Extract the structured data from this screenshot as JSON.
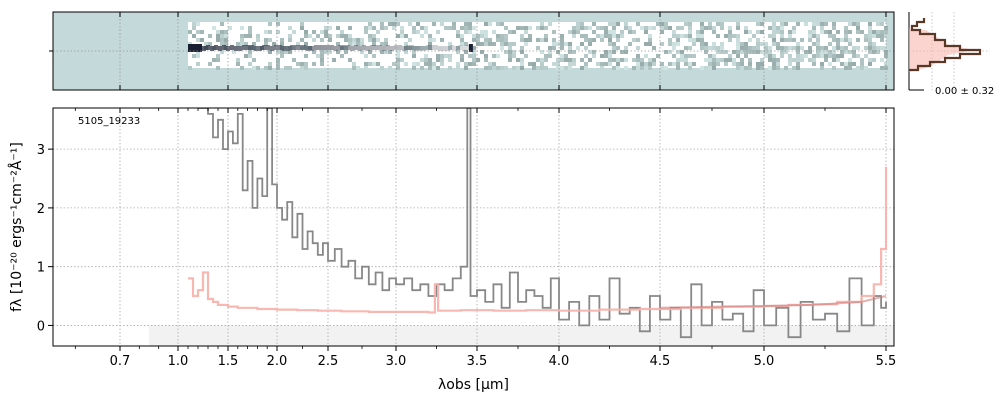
{
  "chart_data": [
    {
      "type": "heatmap",
      "panel": "2D spectrum",
      "colormap": [
        "#c4d9d9",
        "#ffffff",
        "#1a2033"
      ],
      "grid": true,
      "xlim": [
        0.55,
        5.52
      ],
      "x_scale": "nonlinear",
      "data_x_range": [
        1.1,
        5.5
      ],
      "trace_note_x": [
        1.1,
        3.45
      ]
    },
    {
      "type": "line",
      "panel": "pixel histogram",
      "label": "0.00 ± 0.32",
      "series": [
        {
          "name": "histogram",
          "color": "#5a3828"
        },
        {
          "name": "reference",
          "color": "#f7b0a8"
        }
      ]
    },
    {
      "type": "line",
      "panel": "1D spectrum",
      "title": "5105_19233",
      "xlabel": "λobs [μm]",
      "ylabel": "fλ [10⁻²⁰ ergs⁻¹cm⁻²Å⁻¹]",
      "xlim": [
        0.55,
        5.52
      ],
      "ylim": [
        -0.35,
        3.7
      ],
      "x_scale": "nonlinear",
      "x_ticks": [
        0.7,
        1.0,
        1.5,
        2.0,
        2.5,
        3.0,
        3.5,
        4.0,
        4.5,
        5.0,
        5.5
      ],
      "x_tick_labels": [
        "0.7",
        "1.0",
        "1.5",
        "2.0",
        "2.5",
        "3.0",
        "3.5",
        "4.0",
        "4.5",
        "5.0",
        "5.5"
      ],
      "y_ticks": [
        0,
        1,
        2,
        3
      ],
      "y_tick_labels": [
        "0",
        "1",
        "2",
        "3"
      ],
      "grid": true,
      "series": [
        {
          "name": "flux",
          "color": "#888888",
          "style": "step",
          "x": [
            1.2,
            1.25,
            1.3,
            1.35,
            1.4,
            1.45,
            1.5,
            1.55,
            1.6,
            1.65,
            1.7,
            1.75,
            1.8,
            1.85,
            1.9,
            1.95,
            2.0,
            2.05,
            2.1,
            2.15,
            2.2,
            2.25,
            2.3,
            2.35,
            2.4,
            2.45,
            2.5,
            2.55,
            2.6,
            2.65,
            2.7,
            2.75,
            2.8,
            2.85,
            2.9,
            2.95,
            3.0,
            3.05,
            3.1,
            3.15,
            3.2,
            3.25,
            3.3,
            3.35,
            3.4,
            3.44,
            3.46,
            3.5,
            3.55,
            3.6,
            3.65,
            3.7,
            3.75,
            3.8,
            3.85,
            3.9,
            3.95,
            4.0,
            4.05,
            4.1,
            4.15,
            4.2,
            4.25,
            4.3,
            4.35,
            4.4,
            4.45,
            4.5,
            4.55,
            4.6,
            4.65,
            4.7,
            4.75,
            4.8,
            4.85,
            4.9,
            4.95,
            5.0,
            5.05,
            5.1,
            5.15,
            5.2,
            5.25,
            5.3,
            5.35,
            5.4,
            5.45,
            5.48,
            5.5
          ],
          "values": [
            3.7,
            3.7,
            3.6,
            3.2,
            3.5,
            3.0,
            3.3,
            3.1,
            3.6,
            2.3,
            2.8,
            2.0,
            2.5,
            2.2,
            3.7,
            2.4,
            2.0,
            1.8,
            2.1,
            1.5,
            1.9,
            1.3,
            1.6,
            1.4,
            1.2,
            1.4,
            1.1,
            1.3,
            1.0,
            1.1,
            0.8,
            1.0,
            0.7,
            0.9,
            0.6,
            0.8,
            0.7,
            0.8,
            0.6,
            0.7,
            0.5,
            0.7,
            0.6,
            0.8,
            1.0,
            3.7,
            0.5,
            0.6,
            0.4,
            0.7,
            0.3,
            0.9,
            0.4,
            0.6,
            0.5,
            0.3,
            0.8,
            0.1,
            0.4,
            0.0,
            0.5,
            0.1,
            0.8,
            0.2,
            0.3,
            -0.1,
            0.5,
            0.1,
            0.3,
            -0.2,
            0.7,
            0.0,
            0.4,
            0.1,
            0.2,
            -0.1,
            0.6,
            0.0,
            0.3,
            -0.2,
            0.4,
            0.1,
            0.2,
            -0.1,
            0.8,
            0.0,
            0.5,
            0.3,
            0.4
          ]
        },
        {
          "name": "error",
          "color": "#f7b0a8",
          "style": "step",
          "x": [
            1.1,
            1.15,
            1.2,
            1.25,
            1.3,
            1.35,
            1.4,
            1.5,
            1.6,
            1.7,
            1.8,
            1.9,
            2.0,
            2.2,
            2.4,
            2.6,
            2.8,
            3.0,
            3.2,
            3.24,
            3.26,
            3.3,
            3.4,
            3.6,
            3.8,
            4.0,
            4.2,
            4.4,
            4.6,
            4.8,
            5.0,
            5.1,
            5.2,
            5.3,
            5.4,
            5.45,
            5.48,
            5.5
          ],
          "values": [
            0.8,
            0.5,
            0.6,
            0.9,
            0.45,
            0.4,
            0.35,
            0.32,
            0.3,
            0.3,
            0.28,
            0.28,
            0.27,
            0.26,
            0.25,
            0.24,
            0.23,
            0.23,
            0.22,
            0.7,
            0.25,
            0.25,
            0.26,
            0.25,
            0.26,
            0.25,
            0.27,
            0.28,
            0.3,
            0.32,
            0.33,
            0.35,
            0.36,
            0.4,
            0.5,
            0.7,
            1.3,
            2.7
          ]
        },
        {
          "name": "model",
          "color": "#d08080",
          "style": "line",
          "x": [
            4.5,
            4.8,
            5.0,
            5.2,
            5.4,
            5.5
          ],
          "values": [
            0.3,
            0.32,
            0.33,
            0.35,
            0.4,
            0.5
          ]
        }
      ]
    }
  ]
}
